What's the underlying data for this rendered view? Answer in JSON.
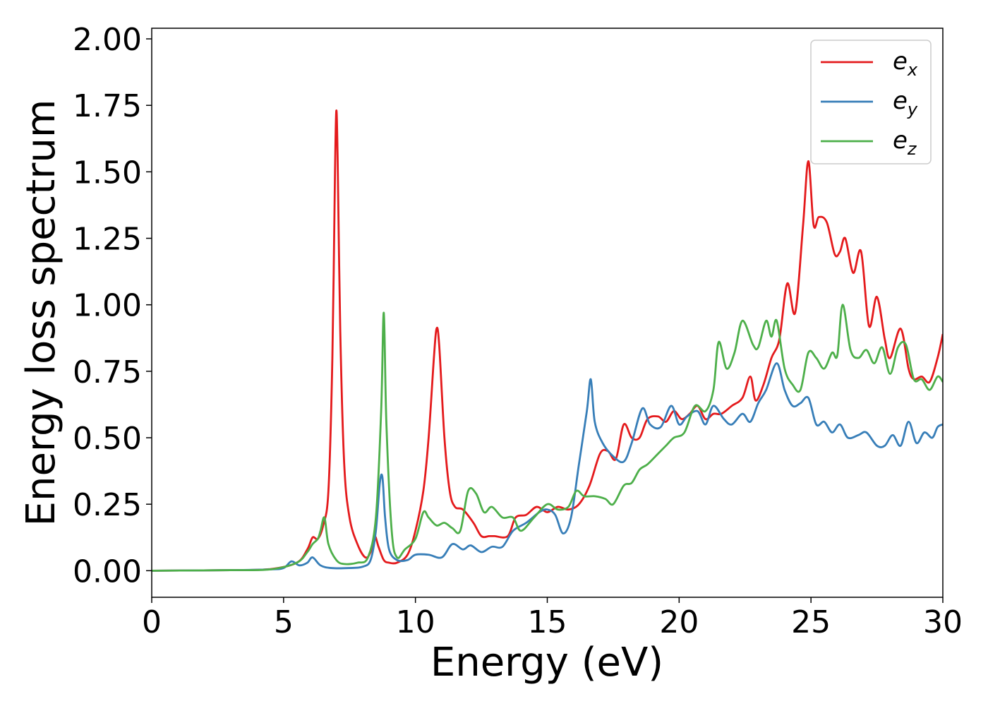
{
  "chart_data": {
    "type": "line",
    "title": "",
    "xlabel": "Energy (eV)",
    "ylabel": "Energy loss spectrum",
    "xlim": [
      0,
      30
    ],
    "ylim": [
      -0.1,
      2.04
    ],
    "xticks": [
      0,
      5,
      10,
      15,
      20,
      25,
      30
    ],
    "xtick_labels": [
      "0",
      "5",
      "10",
      "15",
      "20",
      "25",
      "30"
    ],
    "yticks": [
      0.0,
      0.25,
      0.5,
      0.75,
      1.0,
      1.25,
      1.5,
      1.75,
      2.0
    ],
    "ytick_labels": [
      "0.00",
      "0.25",
      "0.50",
      "0.75",
      "1.00",
      "1.25",
      "1.50",
      "1.75",
      "2.00"
    ],
    "grid": false,
    "legend_position": "top-right",
    "series": [
      {
        "name": "e_x",
        "legend_base": "e",
        "legend_sub": "x",
        "color": "#e41a1c",
        "points": [
          [
            0,
            0.0
          ],
          [
            3,
            0.002
          ],
          [
            4.5,
            0.006
          ],
          [
            5.5,
            0.03
          ],
          [
            5.9,
            0.08
          ],
          [
            6.1,
            0.125
          ],
          [
            6.3,
            0.12
          ],
          [
            6.5,
            0.17
          ],
          [
            6.7,
            0.3
          ],
          [
            6.85,
            0.8
          ],
          [
            6.95,
            1.5
          ],
          [
            7.0,
            1.73
          ],
          [
            7.05,
            1.55
          ],
          [
            7.15,
            0.9
          ],
          [
            7.3,
            0.4
          ],
          [
            7.5,
            0.2
          ],
          [
            7.8,
            0.1
          ],
          [
            8.1,
            0.05
          ],
          [
            8.3,
            0.07
          ],
          [
            8.45,
            0.13
          ],
          [
            8.6,
            0.09
          ],
          [
            8.8,
            0.04
          ],
          [
            9.0,
            0.03
          ],
          [
            9.3,
            0.03
          ],
          [
            9.7,
            0.06
          ],
          [
            10.0,
            0.15
          ],
          [
            10.3,
            0.3
          ],
          [
            10.5,
            0.5
          ],
          [
            10.7,
            0.8
          ],
          [
            10.8,
            0.91
          ],
          [
            10.9,
            0.85
          ],
          [
            11.1,
            0.5
          ],
          [
            11.3,
            0.3
          ],
          [
            11.5,
            0.24
          ],
          [
            11.8,
            0.23
          ],
          [
            12.2,
            0.18
          ],
          [
            12.5,
            0.13
          ],
          [
            12.8,
            0.13
          ],
          [
            13.0,
            0.13
          ],
          [
            13.5,
            0.13
          ],
          [
            13.8,
            0.2
          ],
          [
            14.2,
            0.21
          ],
          [
            14.6,
            0.24
          ],
          [
            15.0,
            0.22
          ],
          [
            15.4,
            0.24
          ],
          [
            15.8,
            0.23
          ],
          [
            16.2,
            0.25
          ],
          [
            16.6,
            0.32
          ],
          [
            17.0,
            0.44
          ],
          [
            17.3,
            0.45
          ],
          [
            17.6,
            0.42
          ],
          [
            17.9,
            0.55
          ],
          [
            18.2,
            0.5
          ],
          [
            18.5,
            0.5
          ],
          [
            18.8,
            0.57
          ],
          [
            19.2,
            0.58
          ],
          [
            19.5,
            0.56
          ],
          [
            19.8,
            0.6
          ],
          [
            20.1,
            0.57
          ],
          [
            20.4,
            0.59
          ],
          [
            20.7,
            0.62
          ],
          [
            21.0,
            0.57
          ],
          [
            21.3,
            0.59
          ],
          [
            21.6,
            0.59
          ],
          [
            22.0,
            0.62
          ],
          [
            22.4,
            0.65
          ],
          [
            22.7,
            0.73
          ],
          [
            22.9,
            0.64
          ],
          [
            23.2,
            0.7
          ],
          [
            23.5,
            0.8
          ],
          [
            23.8,
            0.87
          ],
          [
            24.1,
            1.08
          ],
          [
            24.4,
            0.97
          ],
          [
            24.7,
            1.3
          ],
          [
            24.9,
            1.54
          ],
          [
            25.1,
            1.3
          ],
          [
            25.3,
            1.33
          ],
          [
            25.6,
            1.31
          ],
          [
            25.9,
            1.19
          ],
          [
            26.1,
            1.2
          ],
          [
            26.3,
            1.25
          ],
          [
            26.6,
            1.12
          ],
          [
            26.9,
            1.2
          ],
          [
            27.2,
            0.92
          ],
          [
            27.5,
            1.03
          ],
          [
            27.8,
            0.87
          ],
          [
            28.0,
            0.8
          ],
          [
            28.4,
            0.91
          ],
          [
            28.7,
            0.76
          ],
          [
            28.9,
            0.72
          ],
          [
            29.2,
            0.73
          ],
          [
            29.5,
            0.71
          ],
          [
            29.8,
            0.8
          ],
          [
            30,
            0.89
          ]
        ]
      },
      {
        "name": "e_y",
        "legend_base": "e",
        "legend_sub": "y",
        "color": "#377eb8",
        "points": [
          [
            0,
            0.0
          ],
          [
            3,
            0.002
          ],
          [
            4.5,
            0.005
          ],
          [
            5.0,
            0.01
          ],
          [
            5.3,
            0.035
          ],
          [
            5.6,
            0.02
          ],
          [
            5.9,
            0.03
          ],
          [
            6.1,
            0.05
          ],
          [
            6.4,
            0.02
          ],
          [
            6.8,
            0.01
          ],
          [
            7.5,
            0.01
          ],
          [
            8.0,
            0.015
          ],
          [
            8.3,
            0.04
          ],
          [
            8.5,
            0.15
          ],
          [
            8.65,
            0.33
          ],
          [
            8.75,
            0.35
          ],
          [
            8.85,
            0.2
          ],
          [
            9.0,
            0.08
          ],
          [
            9.3,
            0.04
          ],
          [
            9.7,
            0.04
          ],
          [
            10.0,
            0.06
          ],
          [
            10.5,
            0.06
          ],
          [
            11.0,
            0.05
          ],
          [
            11.4,
            0.1
          ],
          [
            11.8,
            0.08
          ],
          [
            12.1,
            0.095
          ],
          [
            12.5,
            0.07
          ],
          [
            12.9,
            0.09
          ],
          [
            13.3,
            0.09
          ],
          [
            13.7,
            0.15
          ],
          [
            14.2,
            0.18
          ],
          [
            14.7,
            0.22
          ],
          [
            15.0,
            0.23
          ],
          [
            15.3,
            0.21
          ],
          [
            15.6,
            0.14
          ],
          [
            15.9,
            0.2
          ],
          [
            16.2,
            0.4
          ],
          [
            16.5,
            0.6
          ],
          [
            16.65,
            0.72
          ],
          [
            16.8,
            0.56
          ],
          [
            17.1,
            0.48
          ],
          [
            17.5,
            0.43
          ],
          [
            17.9,
            0.41
          ],
          [
            18.2,
            0.48
          ],
          [
            18.6,
            0.61
          ],
          [
            18.9,
            0.55
          ],
          [
            19.3,
            0.54
          ],
          [
            19.7,
            0.62
          ],
          [
            20.0,
            0.55
          ],
          [
            20.3,
            0.58
          ],
          [
            20.7,
            0.6
          ],
          [
            21.0,
            0.55
          ],
          [
            21.3,
            0.62
          ],
          [
            21.7,
            0.57
          ],
          [
            22.0,
            0.55
          ],
          [
            22.4,
            0.59
          ],
          [
            22.7,
            0.56
          ],
          [
            23.0,
            0.63
          ],
          [
            23.3,
            0.68
          ],
          [
            23.7,
            0.78
          ],
          [
            24.0,
            0.68
          ],
          [
            24.3,
            0.62
          ],
          [
            24.6,
            0.63
          ],
          [
            24.9,
            0.65
          ],
          [
            25.2,
            0.55
          ],
          [
            25.5,
            0.56
          ],
          [
            25.8,
            0.52
          ],
          [
            26.1,
            0.55
          ],
          [
            26.4,
            0.5
          ],
          [
            26.8,
            0.51
          ],
          [
            27.1,
            0.52
          ],
          [
            27.5,
            0.47
          ],
          [
            27.8,
            0.47
          ],
          [
            28.1,
            0.51
          ],
          [
            28.4,
            0.47
          ],
          [
            28.7,
            0.56
          ],
          [
            29.0,
            0.48
          ],
          [
            29.3,
            0.52
          ],
          [
            29.6,
            0.5
          ],
          [
            29.8,
            0.54
          ],
          [
            30,
            0.55
          ]
        ]
      },
      {
        "name": "e_z",
        "legend_base": "e",
        "legend_sub": "z",
        "color": "#4daf4a",
        "points": [
          [
            0,
            0.0
          ],
          [
            3,
            0.002
          ],
          [
            4.5,
            0.005
          ],
          [
            5.5,
            0.03
          ],
          [
            5.9,
            0.07
          ],
          [
            6.1,
            0.1
          ],
          [
            6.3,
            0.12
          ],
          [
            6.4,
            0.15
          ],
          [
            6.55,
            0.2
          ],
          [
            6.7,
            0.1
          ],
          [
            7.0,
            0.04
          ],
          [
            7.3,
            0.025
          ],
          [
            7.8,
            0.03
          ],
          [
            8.2,
            0.05
          ],
          [
            8.5,
            0.2
          ],
          [
            8.7,
            0.6
          ],
          [
            8.8,
            0.97
          ],
          [
            8.9,
            0.55
          ],
          [
            9.1,
            0.15
          ],
          [
            9.3,
            0.05
          ],
          [
            9.6,
            0.08
          ],
          [
            10.0,
            0.12
          ],
          [
            10.3,
            0.22
          ],
          [
            10.5,
            0.2
          ],
          [
            10.8,
            0.17
          ],
          [
            11.1,
            0.18
          ],
          [
            11.4,
            0.16
          ],
          [
            11.7,
            0.15
          ],
          [
            12.0,
            0.3
          ],
          [
            12.3,
            0.29
          ],
          [
            12.6,
            0.22
          ],
          [
            12.9,
            0.24
          ],
          [
            13.3,
            0.2
          ],
          [
            13.7,
            0.2
          ],
          [
            14.0,
            0.15
          ],
          [
            14.5,
            0.2
          ],
          [
            15.0,
            0.25
          ],
          [
            15.4,
            0.23
          ],
          [
            15.8,
            0.24
          ],
          [
            16.1,
            0.3
          ],
          [
            16.4,
            0.28
          ],
          [
            16.8,
            0.28
          ],
          [
            17.2,
            0.27
          ],
          [
            17.5,
            0.25
          ],
          [
            17.9,
            0.32
          ],
          [
            18.2,
            0.33
          ],
          [
            18.5,
            0.38
          ],
          [
            18.8,
            0.4
          ],
          [
            19.2,
            0.44
          ],
          [
            19.5,
            0.47
          ],
          [
            19.8,
            0.5
          ],
          [
            20.2,
            0.52
          ],
          [
            20.6,
            0.62
          ],
          [
            21.0,
            0.6
          ],
          [
            21.3,
            0.68
          ],
          [
            21.5,
            0.86
          ],
          [
            21.8,
            0.76
          ],
          [
            22.1,
            0.82
          ],
          [
            22.4,
            0.94
          ],
          [
            22.8,
            0.85
          ],
          [
            23.0,
            0.84
          ],
          [
            23.3,
            0.94
          ],
          [
            23.5,
            0.88
          ],
          [
            23.7,
            0.94
          ],
          [
            24.0,
            0.76
          ],
          [
            24.3,
            0.7
          ],
          [
            24.6,
            0.68
          ],
          [
            24.9,
            0.82
          ],
          [
            25.2,
            0.8
          ],
          [
            25.5,
            0.76
          ],
          [
            25.8,
            0.82
          ],
          [
            26.0,
            0.81
          ],
          [
            26.2,
            1.0
          ],
          [
            26.5,
            0.83
          ],
          [
            26.8,
            0.8
          ],
          [
            27.1,
            0.83
          ],
          [
            27.4,
            0.78
          ],
          [
            27.7,
            0.84
          ],
          [
            28.0,
            0.74
          ],
          [
            28.3,
            0.84
          ],
          [
            28.6,
            0.85
          ],
          [
            28.9,
            0.72
          ],
          [
            29.2,
            0.72
          ],
          [
            29.5,
            0.68
          ],
          [
            29.8,
            0.73
          ],
          [
            30,
            0.71
          ]
        ]
      }
    ]
  }
}
